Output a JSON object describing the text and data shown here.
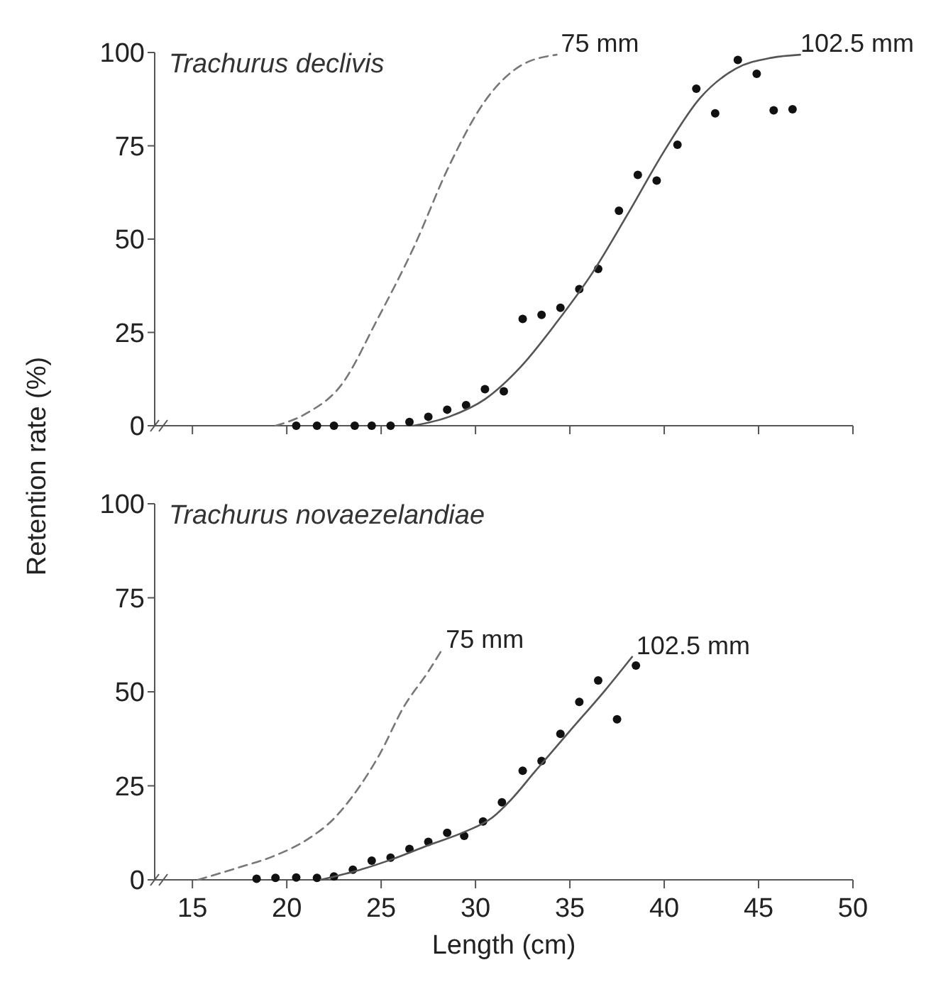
{
  "chart_data": [
    {
      "type": "scatter",
      "title": "Trachurus declivis",
      "ylabel": "Retention rate (%)",
      "xlim": [
        13,
        50
      ],
      "xticks": [
        {
          "value": 15,
          "label": null
        },
        {
          "value": 20,
          "label": null
        },
        {
          "value": 25,
          "label": null
        },
        {
          "value": 30,
          "label": null
        },
        {
          "value": 35,
          "label": null
        },
        {
          "value": 40,
          "label": null
        },
        {
          "value": 45,
          "label": null
        },
        {
          "value": 50,
          "label": null
        }
      ],
      "ylim": [
        0,
        100
      ],
      "yticks": [
        0,
        25,
        50,
        75,
        100
      ],
      "tick_labels": "y",
      "grid": false,
      "series": [
        {
          "marker": "circle",
          "color": "#111111",
          "x": [
            20.5,
            21.6,
            22.5,
            23.6,
            24.5,
            25.5,
            26.5,
            27.5,
            28.5,
            29.5,
            30.5,
            31.5,
            32.5,
            33.5,
            34.5,
            35.5,
            36.5,
            37.6,
            38.6,
            39.6,
            40.7,
            41.7,
            42.7,
            43.9,
            44.9,
            45.8,
            46.8
          ],
          "values": [
            0,
            0,
            0,
            0,
            0,
            0,
            1,
            2.4,
            4.3,
            5.5,
            9.8,
            9.2,
            28.6,
            29.7,
            31.6,
            36.6,
            42,
            57.6,
            67.2,
            65.7,
            75.3,
            90.3,
            83.7,
            98,
            94.3,
            84.5,
            84.8
          ]
        },
        {
          "type": "line",
          "name": "75 mm",
          "line_style": "dashed",
          "color": "#777777",
          "x": [
            19.4,
            21.0,
            22.9,
            24.8,
            26.7,
            28.6,
            30.5,
            32.4,
            34.3
          ],
          "values": [
            0,
            3.2,
            11,
            28.5,
            47.5,
            69.6,
            87,
            96.5,
            99.4
          ]
        },
        {
          "type": "line",
          "name": "102.5 mm",
          "line_style": "solid",
          "color": "#555555",
          "x": [
            26.7,
            28.6,
            30.5,
            32.4,
            34.3,
            36.2,
            38.1,
            40.0,
            41.9,
            43.8,
            45.7,
            47.2
          ],
          "values": [
            0,
            2.4,
            7.1,
            15.8,
            27.7,
            41,
            57,
            73.6,
            87.8,
            95.7,
            98.6,
            99.4
          ]
        }
      ]
    },
    {
      "type": "scatter",
      "title": "Trachurus novaezelandiae",
      "xlabel": "Length (cm)",
      "xlim": [
        13,
        50
      ],
      "xticks": [
        15,
        20,
        25,
        30,
        35,
        40,
        45,
        50
      ],
      "ylim": [
        0,
        100
      ],
      "yticks": [
        0,
        25,
        50,
        75,
        100
      ],
      "grid": false,
      "series": [
        {
          "marker": "circle",
          "color": "#111111",
          "x": [
            18.4,
            19.4,
            20.5,
            21.6,
            22.5,
            23.5,
            24.5,
            25.5,
            26.5,
            27.5,
            28.5,
            29.4,
            30.4,
            31.4,
            32.5,
            33.5,
            34.5,
            35.5,
            36.5,
            37.5,
            38.5
          ],
          "values": [
            0.3,
            0.5,
            0.6,
            0.5,
            0.9,
            2.7,
            5.1,
            5.9,
            8.2,
            10.1,
            12.5,
            11.7,
            15.5,
            20.6,
            29,
            31.6,
            38.8,
            47.3,
            53,
            42.7,
            57
          ]
        },
        {
          "type": "line",
          "name": "75 mm",
          "line_style": "dashed",
          "color": "#777777",
          "x": [
            15.3,
            17.4,
            19.3,
            21.2,
            22.4,
            23.7,
            24.9,
            26.2,
            27.5,
            28.2
          ],
          "values": [
            0,
            3.2,
            6.3,
            11.1,
            15.8,
            23.7,
            33.2,
            46,
            55.4,
            61
          ]
        },
        {
          "type": "line",
          "name": "102.5 mm",
          "line_style": "solid",
          "color": "#555555",
          "x": [
            21.8,
            23.7,
            25.6,
            27.5,
            29.4,
            30.9,
            31.9,
            33.1,
            35.0,
            36.9,
            38.3
          ],
          "values": [
            0,
            2.4,
            5.5,
            9.2,
            12.7,
            16.6,
            21.4,
            28.5,
            39.6,
            50.6,
            59.3
          ]
        }
      ]
    }
  ]
}
